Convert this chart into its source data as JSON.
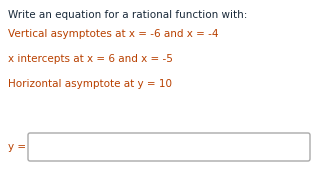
{
  "title": "Write an equation for a rational function with:",
  "line1": "Vertical asymptotes at x = -6 and x = -4",
  "line2": "x intercepts at x = 6 and x = -5",
  "line3": "Horizontal asymptote at y = 10",
  "label": "y =",
  "title_color": "#1a2a3a",
  "body_color": "#b84000",
  "background_color": "#ffffff",
  "font_size_title": 7.5,
  "font_size_body": 7.5,
  "box_edge_color": "#aaaaaa"
}
